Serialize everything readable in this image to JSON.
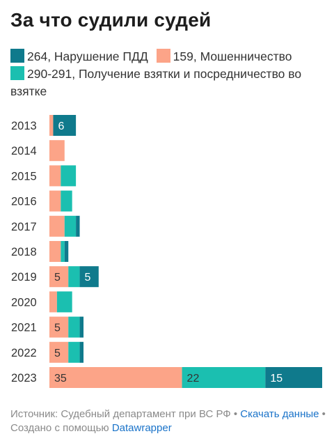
{
  "title": "За что судили судей",
  "colors": {
    "traffic": "#0f7a8c",
    "fraud": "#fca488",
    "bribery": "#1bbfb0"
  },
  "legend": [
    {
      "key": "traffic",
      "label": "264, Нарушение ПДД"
    },
    {
      "key": "fraud",
      "label": "159, Мошенничество"
    },
    {
      "key": "bribery",
      "label": "290-291, Получение взятки и посредничество во взятке"
    }
  ],
  "chart_data": {
    "type": "bar",
    "orientation": "horizontal",
    "stacked": true,
    "categories": [
      "2013",
      "2014",
      "2015",
      "2016",
      "2017",
      "2018",
      "2019",
      "2020",
      "2021",
      "2022",
      "2023"
    ],
    "series": [
      {
        "name": "159, Мошенничество",
        "key": "fraud",
        "values": [
          1,
          4,
          3,
          3,
          4,
          3,
          5,
          2,
          5,
          5,
          35
        ]
      },
      {
        "name": "290-291, Получение взятки и посредничество во взятке",
        "key": "bribery",
        "values": [
          0,
          0,
          4,
          3,
          3,
          1,
          3,
          4,
          3,
          3,
          22
        ]
      },
      {
        "name": "264, Нарушение ПДД",
        "key": "traffic",
        "values": [
          6,
          0,
          0,
          0,
          1,
          1,
          5,
          0,
          1,
          1,
          15
        ]
      }
    ],
    "data_labels": [
      {
        "category": "2013",
        "series": "traffic",
        "text": "6"
      },
      {
        "category": "2019",
        "series": "fraud",
        "text": "5"
      },
      {
        "category": "2019",
        "series": "traffic",
        "text": "5"
      },
      {
        "category": "2021",
        "series": "fraud",
        "text": "5"
      },
      {
        "category": "2022",
        "series": "fraud",
        "text": "5"
      },
      {
        "category": "2023",
        "series": "fraud",
        "text": "35"
      },
      {
        "category": "2023",
        "series": "bribery",
        "text": "22"
      },
      {
        "category": "2023",
        "series": "traffic",
        "text": "15"
      }
    ],
    "xlim": [
      0,
      72
    ],
    "grid": false,
    "legend_position": "top"
  },
  "footer": {
    "source": "Источник: Судебный департамент при ВС РФ",
    "sep1": " • ",
    "download": "Скачать данные",
    "sep2": " • ",
    "made_with": "Создано с помощью ",
    "tool": "Datawrapper"
  }
}
